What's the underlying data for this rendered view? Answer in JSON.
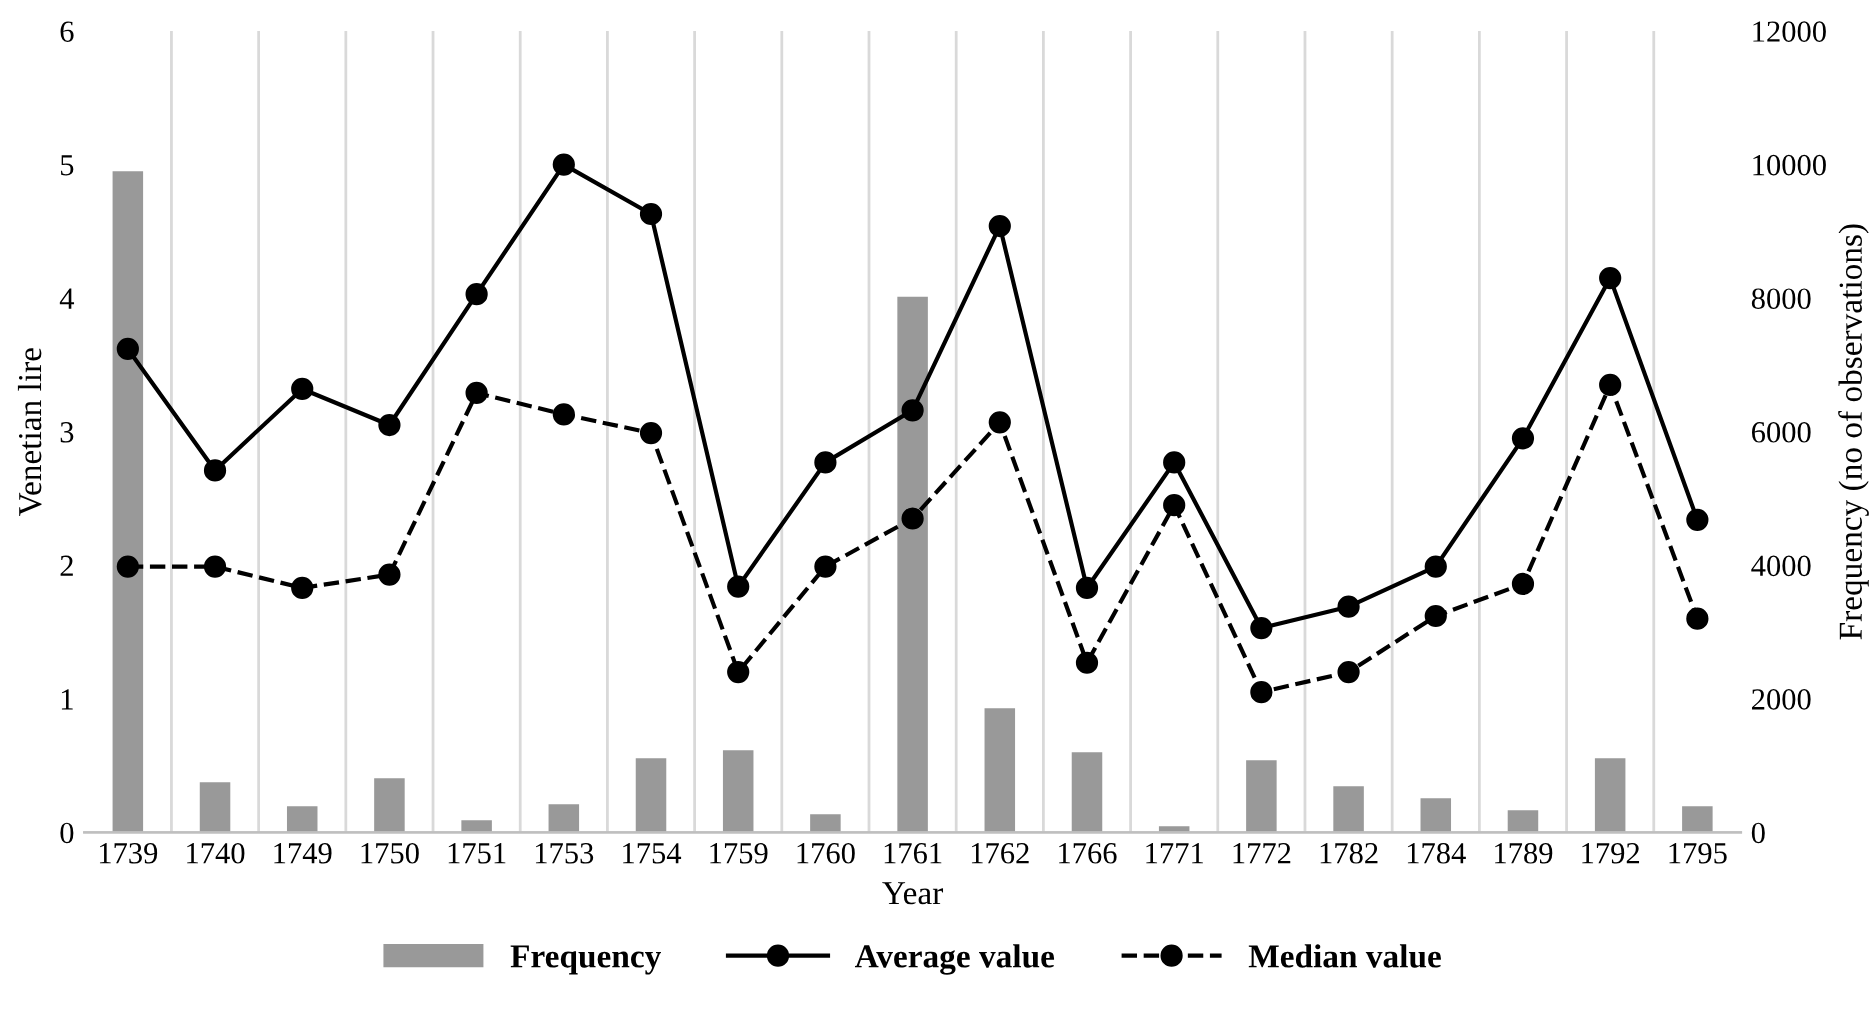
{
  "chart_data": {
    "type": "line",
    "xlabel": "Year",
    "ylabel": "Venetian lire",
    "y2label": "Frequency (no of observations)",
    "categories": [
      "1739",
      "1740",
      "1749",
      "1750",
      "1751",
      "1753",
      "1754",
      "1759",
      "1760",
      "1761",
      "1762",
      "1766",
      "1771",
      "1772",
      "1782",
      "1784",
      "1789",
      "1792",
      "1795"
    ],
    "series": [
      {
        "name": "Frequency",
        "type": "bar",
        "axis": "y2",
        "color": "#999999",
        "values": [
          9900,
          750,
          390,
          810,
          180,
          420,
          1110,
          1230,
          270,
          8020,
          1860,
          1200,
          90,
          1080,
          690,
          510,
          330,
          1110,
          390
        ]
      },
      {
        "name": "Average value",
        "color": "#000000",
        "marker": "circle",
        "line_style": "solid",
        "values": [
          3.62,
          2.71,
          3.32,
          3.05,
          4.03,
          5.0,
          4.63,
          1.84,
          2.77,
          3.16,
          4.54,
          1.83,
          2.77,
          1.53,
          1.69,
          1.99,
          2.95,
          4.15,
          2.34
        ]
      },
      {
        "name": "Median value",
        "color": "#000000",
        "marker": "circle",
        "line_style": "dashed",
        "values": [
          1.99,
          1.99,
          1.83,
          1.93,
          3.29,
          3.13,
          2.99,
          1.2,
          1.99,
          2.35,
          3.07,
          1.27,
          2.45,
          1.05,
          1.2,
          1.62,
          1.86,
          3.35,
          1.6
        ]
      }
    ],
    "ylim": [
      0,
      6
    ],
    "yticks": [
      0,
      1,
      2,
      3,
      4,
      5,
      6
    ],
    "y2lim": [
      0,
      12000
    ],
    "y2ticks": [
      0,
      2000,
      4000,
      6000,
      8000,
      10000,
      12000
    ],
    "grid": "x",
    "legend": "bottom"
  }
}
